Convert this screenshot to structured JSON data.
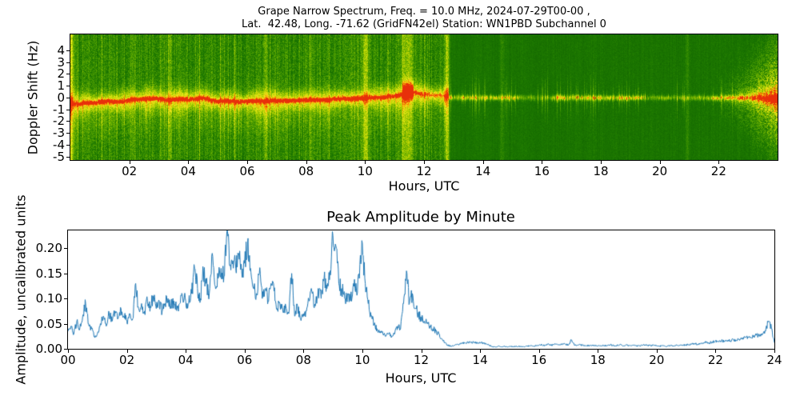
{
  "figure": {
    "background": "#ffffff",
    "title_line1": "Grape Narrow Spectrum, Freq. = 10.0 MHz, 2024-07-29T00-00 ,",
    "title_line2": "Lat.  42.48, Long. -71.62 (GridFN42el) Station: WN1PBD Subchannel 0"
  },
  "chart_data": [
    {
      "id": "doppler_spectrogram",
      "type": "heatmap",
      "title": "Grape Narrow Spectrum, Freq. = 10.0 MHz, 2024-07-29T00-00 , Lat.  42.48, Long. -71.62 (GridFN42el) Station: WN1PBD Subchannel 0",
      "xlabel": "Hours, UTC",
      "ylabel": "Doppler Shift (Hz)",
      "xlim": [
        0,
        24
      ],
      "ylim": [
        -5.3,
        5.35
      ],
      "xtick_labels": [
        "02",
        "04",
        "06",
        "08",
        "10",
        "12",
        "14",
        "16",
        "18",
        "20",
        "22"
      ],
      "xtick_values": [
        2,
        4,
        6,
        8,
        10,
        12,
        14,
        16,
        18,
        20,
        22
      ],
      "ytick_labels": [
        "4",
        "3",
        "2",
        "1",
        "0",
        "-1",
        "-2",
        "-3",
        "-4",
        "-5"
      ],
      "ytick_values": [
        4,
        3,
        2,
        1,
        0,
        -1,
        -2,
        -3,
        -4,
        -5
      ],
      "grid": false,
      "legend": "none",
      "colormap_stops": [
        [
          0.0,
          14,
          94,
          0
        ],
        [
          0.22,
          30,
          122,
          0
        ],
        [
          0.42,
          92,
          168,
          0
        ],
        [
          0.6,
          180,
          210,
          0
        ],
        [
          0.74,
          238,
          232,
          30
        ],
        [
          0.86,
          248,
          158,
          0
        ],
        [
          1.0,
          232,
          48,
          10
        ]
      ],
      "day_region_end_hour": 12.83,
      "carrier_trace": {
        "hours": [
          0,
          0.25,
          0.5,
          0.75,
          1,
          1.25,
          1.5,
          1.75,
          2,
          2.25,
          2.5,
          2.75,
          3,
          3.25,
          3.5,
          3.75,
          4,
          4.25,
          4.5,
          4.75,
          5,
          5.25,
          5.5,
          5.75,
          6,
          6.25,
          6.5,
          6.75,
          7,
          7.25,
          7.5,
          7.75,
          8,
          8.25,
          8.5,
          8.75,
          9,
          9.25,
          9.5,
          9.75,
          10,
          10.25,
          10.5,
          10.75,
          11,
          11.25,
          11.5,
          11.75,
          12,
          12.25,
          12.5,
          12.75,
          13
        ],
        "hz": [
          -0.45,
          -0.5,
          -0.4,
          -0.45,
          -0.35,
          -0.3,
          -0.35,
          -0.3,
          -0.2,
          -0.1,
          -0.15,
          -0.05,
          -0.1,
          -0.2,
          -0.15,
          -0.1,
          -0.15,
          -0.1,
          0.0,
          -0.2,
          -0.3,
          -0.25,
          -0.3,
          -0.35,
          -0.3,
          -0.25,
          -0.3,
          -0.25,
          -0.2,
          -0.25,
          -0.2,
          -0.25,
          -0.2,
          -0.15,
          -0.2,
          -0.15,
          -0.1,
          -0.05,
          -0.1,
          0.0,
          -0.05,
          0.05,
          0.0,
          0.1,
          0.15,
          0.3,
          0.55,
          0.4,
          0.3,
          0.25,
          0.2,
          0.15,
          0.1
        ]
      },
      "stripes": [
        {
          "t": 0.04,
          "boost": 0.32,
          "w": 2
        },
        {
          "t": 2.1,
          "boost": 0.12,
          "w": 2
        },
        {
          "t": 3.35,
          "boost": 0.14,
          "w": 2
        },
        {
          "t": 6.6,
          "boost": 0.1,
          "w": 2
        },
        {
          "t": 8.15,
          "boost": 0.1,
          "w": 2
        },
        {
          "t": 10.0,
          "boost": 0.34,
          "w": 3
        },
        {
          "t": 11.42,
          "boost": 0.26,
          "w": 5
        },
        {
          "t": 12.78,
          "boost": 0.34,
          "w": 2
        },
        {
          "t": 14.62,
          "boost": 0.1,
          "w": 2
        },
        {
          "t": 20.92,
          "boost": 0.1,
          "w": 2
        }
      ],
      "features": [
        "Noisy bright-green daytime band 00:00-12:50 UTC with meandering red carrier trace near 0 Hz surrounded by a yellow halo",
        "Bright vertical interference stripes near 00:00, 10:00, 11:25 and 12:45 UTC",
        "Quieter dark-green night region after ~12:50 UTC with a thin speckled yellow carrier line at 0 Hz",
        "Carrier brightens after ~21:40 UTC, growing into a bright yellow fan with an orange-red core at 24:00 UTC"
      ]
    },
    {
      "id": "peak_amplitude",
      "type": "line",
      "title": "Peak Amplitude by Minute",
      "xlabel": "Hours, UTC",
      "ylabel": "Amplitude, uncalibrated units",
      "xlim": [
        0,
        24
      ],
      "ylim": [
        0,
        0.2355
      ],
      "xtick_labels": [
        "00",
        "02",
        "04",
        "06",
        "08",
        "10",
        "12",
        "14",
        "16",
        "18",
        "20",
        "22",
        "24"
      ],
      "xtick_values": [
        0,
        2,
        4,
        6,
        8,
        10,
        12,
        14,
        16,
        18,
        20,
        22,
        24
      ],
      "ytick_labels": [
        "0.00",
        "0.05",
        "0.10",
        "0.15",
        "0.20"
      ],
      "ytick_values": [
        0,
        0.05,
        0.1,
        0.15,
        0.2
      ],
      "grid": false,
      "legend": "none",
      "line_color": "#1f77b4",
      "series": [
        {
          "name": "peak_amplitude",
          "x_start": 0,
          "x_step_hours": 0.1,
          "y": [
            0.035,
            0.045,
            0.03,
            0.055,
            0.04,
            0.065,
            0.09,
            0.05,
            0.04,
            0.025,
            0.03,
            0.05,
            0.065,
            0.045,
            0.07,
            0.055,
            0.075,
            0.06,
            0.08,
            0.065,
            0.055,
            0.07,
            0.06,
            0.13,
            0.08,
            0.09,
            0.075,
            0.095,
            0.085,
            0.1,
            0.08,
            0.095,
            0.075,
            0.09,
            0.1,
            0.085,
            0.095,
            0.08,
            0.09,
            0.1,
            0.095,
            0.09,
            0.11,
            0.16,
            0.12,
            0.1,
            0.155,
            0.13,
            0.11,
            0.19,
            0.125,
            0.14,
            0.16,
            0.145,
            0.235,
            0.165,
            0.175,
            0.16,
            0.19,
            0.155,
            0.17,
            0.21,
            0.16,
            0.12,
            0.11,
            0.15,
            0.1,
            0.12,
            0.095,
            0.13,
            0.115,
            0.08,
            0.09,
            0.075,
            0.085,
            0.07,
            0.15,
            0.065,
            0.085,
            0.06,
            0.07,
            0.075,
            0.095,
            0.11,
            0.085,
            0.12,
            0.1,
            0.14,
            0.12,
            0.155,
            0.225,
            0.205,
            0.13,
            0.12,
            0.1,
            0.11,
            0.095,
            0.13,
            0.115,
            0.14,
            0.21,
            0.13,
            0.09,
            0.065,
            0.05,
            0.04,
            0.035,
            0.03,
            0.025,
            0.03,
            0.025,
            0.03,
            0.045,
            0.04,
            0.09,
            0.155,
            0.09,
            0.11,
            0.08,
            0.07,
            0.06,
            0.055,
            0.05,
            0.045,
            0.04,
            0.035,
            0.03,
            0.02,
            0.012,
            0.008,
            0.005,
            0.006,
            0.008,
            0.01,
            0.011,
            0.012,
            0.012,
            0.013,
            0.012,
            0.013,
            0.012,
            0.012,
            0.01,
            0.007,
            0.005,
            0.004,
            0.005,
            0.004,
            0.005,
            0.004,
            0.004,
            0.005,
            0.004,
            0.005,
            0.005,
            0.004,
            0.005,
            0.006,
            0.005,
            0.006,
            0.007,
            0.008,
            0.007,
            0.009,
            0.007,
            0.008,
            0.009,
            0.008,
            0.01,
            0.009,
            0.008,
            0.018,
            0.008,
            0.007,
            0.008,
            0.007,
            0.006,
            0.007,
            0.006,
            0.007,
            0.006,
            0.006,
            0.007,
            0.006,
            0.008,
            0.007,
            0.006,
            0.007,
            0.008,
            0.006,
            0.007,
            0.006,
            0.007,
            0.006,
            0.006,
            0.007,
            0.008,
            0.007,
            0.006,
            0.007,
            0.006,
            0.005,
            0.006,
            0.005,
            0.006,
            0.007,
            0.006,
            0.007,
            0.008,
            0.007,
            0.008,
            0.008,
            0.009,
            0.01,
            0.009,
            0.011,
            0.012,
            0.013,
            0.012,
            0.014,
            0.015,
            0.014,
            0.016,
            0.015,
            0.017,
            0.016,
            0.018,
            0.017,
            0.019,
            0.02,
            0.022,
            0.024,
            0.022,
            0.026,
            0.028,
            0.025,
            0.03,
            0.035,
            0.055,
            0.04,
            0.012
          ]
        }
      ]
    }
  ],
  "layout_note": "matplotlib-style figure: spectrogram on top, line plot below"
}
